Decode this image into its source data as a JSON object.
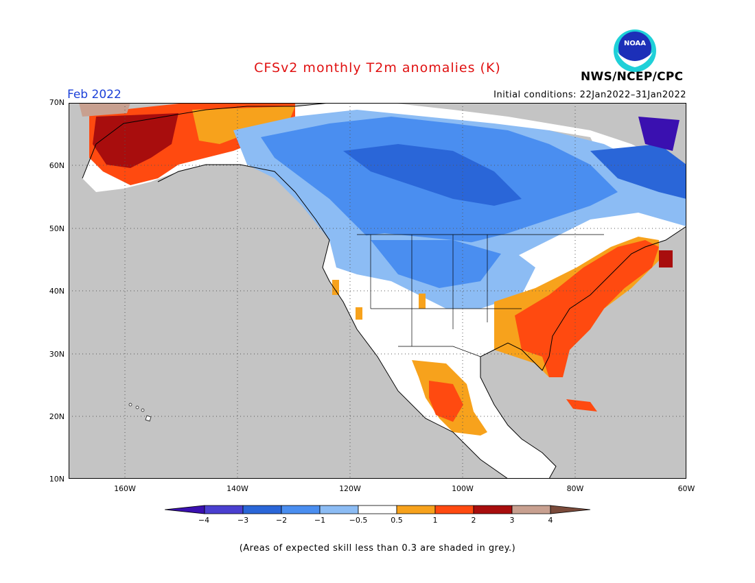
{
  "title": "CFSv2 monthly T2m anomalies (K)",
  "period": "Feb 2022",
  "initial_conditions": "Initial conditions: 22Jan2022–31Jan2022",
  "agency": "NWS/NCEP/CPC",
  "logo_text": "NOAA",
  "footnote": "(Areas of expected skill less than 0.3 are shaded in grey.)",
  "axes": {
    "y_ticks": [
      "70N",
      "60N",
      "50N",
      "40N",
      "30N",
      "20N",
      "10N"
    ],
    "x_ticks": [
      "160W",
      "140W",
      "120W",
      "100W",
      "80W",
      "60W"
    ]
  },
  "colorbar": {
    "labels": [
      "−4",
      "−3",
      "−2",
      "−1",
      "−0.5",
      "0.5",
      "1",
      "2",
      "3",
      "4"
    ],
    "colors": [
      "#3a10b0",
      "#4a3fd0",
      "#2a66d8",
      "#4a8ef0",
      "#8cbcf4",
      "#ffffff",
      "#f7a21c",
      "#ff4a10",
      "#a80d0d",
      "#c8a090",
      "#7a4a3a"
    ]
  },
  "colors": {
    "no_skill_grey": "#c4c4c4",
    "title_red": "#e01010",
    "month_blue": "#1a3fd8"
  }
}
